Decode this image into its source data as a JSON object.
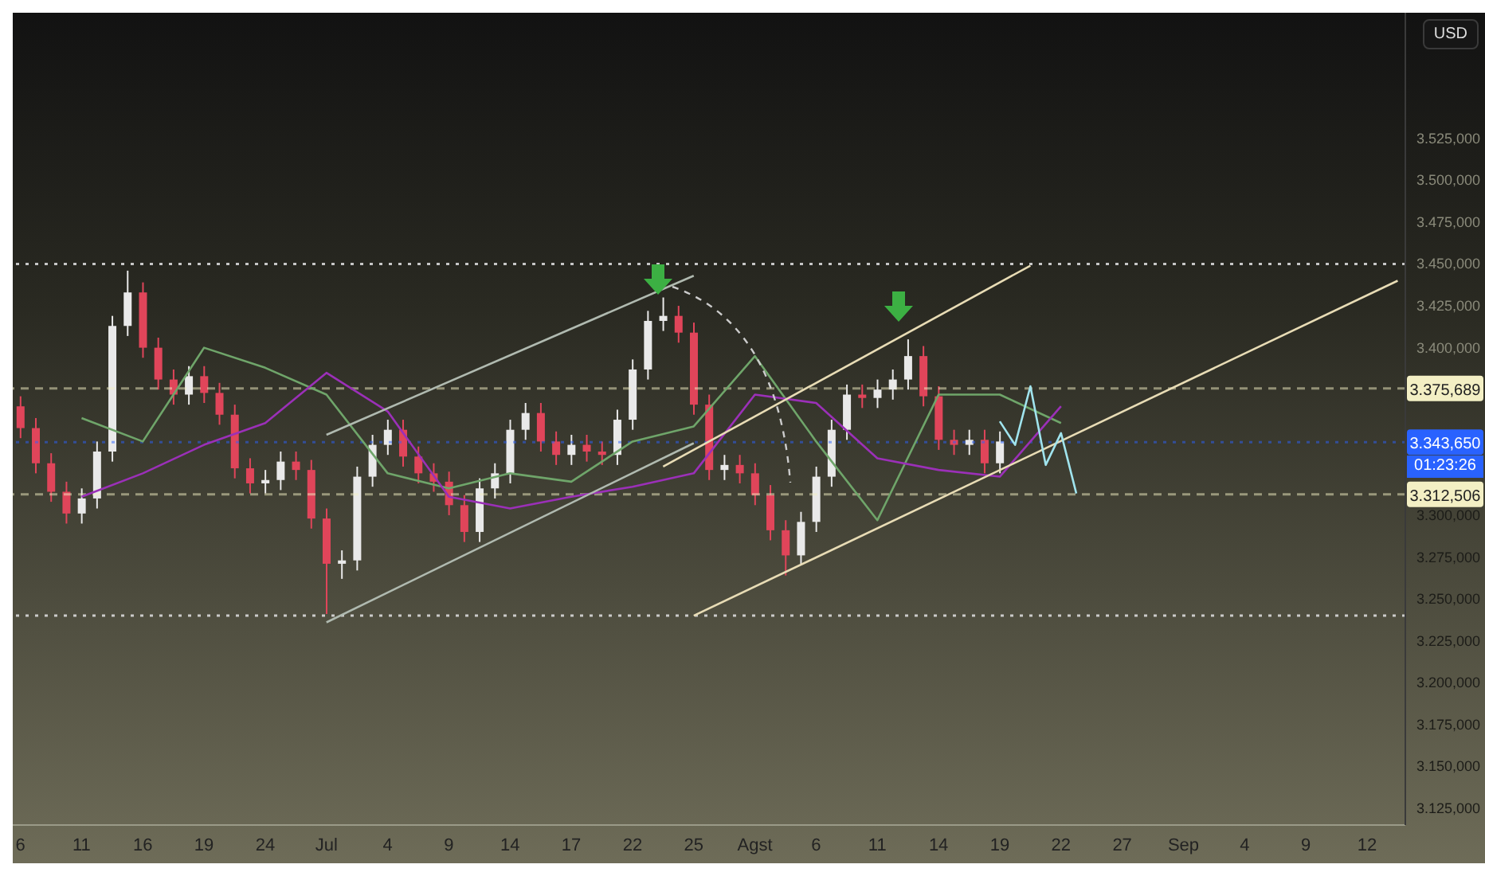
{
  "chart_data": {
    "type": "candlestick",
    "categories": [
      "6",
      null,
      null,
      null,
      "11",
      null,
      null,
      null,
      "16",
      null,
      null,
      null,
      "19",
      null,
      null,
      null,
      "24",
      null,
      null,
      null,
      "Jul",
      null,
      null,
      null,
      "4",
      null,
      null,
      null,
      "9",
      null,
      null,
      null,
      "14",
      null,
      null,
      null,
      "17",
      null,
      null,
      null,
      "22",
      null,
      null,
      null,
      "25",
      null,
      null,
      null,
      "Agst",
      null,
      null,
      null,
      "6",
      null,
      null,
      null,
      "11",
      null,
      null,
      null,
      "14",
      null,
      null,
      null,
      "19",
      null,
      null,
      null,
      "22",
      null,
      null,
      null,
      "27",
      null,
      null,
      null,
      "Sep",
      null,
      null,
      null,
      "4",
      null,
      null,
      null,
      "9",
      null,
      null,
      null,
      "12",
      null,
      null
    ],
    "ohlc": [
      [
        3365,
        3371,
        3346,
        3352
      ],
      [
        3352,
        3358,
        3325,
        3331
      ],
      [
        3331,
        3337,
        3308,
        3314
      ],
      [
        3314,
        3320,
        3295,
        3301
      ],
      [
        3301,
        3316,
        3295,
        3310
      ],
      [
        3310,
        3344,
        3304,
        3338
      ],
      [
        3338,
        3419,
        3332,
        3413
      ],
      [
        3413,
        3446,
        3407,
        3433
      ],
      [
        3433,
        3439,
        3394,
        3400
      ],
      [
        3400,
        3406,
        3375,
        3381
      ],
      [
        3381,
        3387,
        3366,
        3372
      ],
      [
        3372,
        3389,
        3366,
        3383
      ],
      [
        3383,
        3389,
        3367,
        3373
      ],
      [
        3373,
        3379,
        3354,
        3360
      ],
      [
        3360,
        3366,
        3322,
        3328
      ],
      [
        3328,
        3334,
        3313,
        3319
      ],
      [
        3319,
        3327,
        3313,
        3321
      ],
      [
        3321,
        3338,
        3315,
        3332
      ],
      [
        3332,
        3338,
        3321,
        3327
      ],
      [
        3327,
        3333,
        3292,
        3298
      ],
      [
        3298,
        3304,
        3241,
        3271
      ],
      [
        3271,
        3279,
        3262,
        3273
      ],
      [
        3273,
        3329,
        3267,
        3323
      ],
      [
        3323,
        3348,
        3317,
        3342
      ],
      [
        3342,
        3357,
        3336,
        3351
      ],
      [
        3351,
        3357,
        3329,
        3335
      ],
      [
        3335,
        3341,
        3319,
        3325
      ],
      [
        3325,
        3331,
        3314,
        3320
      ],
      [
        3320,
        3326,
        3300,
        3306
      ],
      [
        3306,
        3312,
        3284,
        3290
      ],
      [
        3290,
        3322,
        3284,
        3316
      ],
      [
        3316,
        3331,
        3310,
        3325
      ],
      [
        3325,
        3357,
        3319,
        3351
      ],
      [
        3351,
        3367,
        3345,
        3361
      ],
      [
        3361,
        3367,
        3338,
        3344
      ],
      [
        3344,
        3350,
        3330,
        3336
      ],
      [
        3336,
        3348,
        3330,
        3342
      ],
      [
        3342,
        3348,
        3332,
        3338
      ],
      [
        3338,
        3344,
        3330,
        3336
      ],
      [
        3336,
        3363,
        3330,
        3357
      ],
      [
        3357,
        3393,
        3351,
        3387
      ],
      [
        3387,
        3422,
        3381,
        3416
      ],
      [
        3416,
        3430,
        3410,
        3419
      ],
      [
        3419,
        3425,
        3403,
        3409
      ],
      [
        3409,
        3415,
        3360,
        3366
      ],
      [
        3366,
        3372,
        3321,
        3327
      ],
      [
        3327,
        3336,
        3321,
        3330
      ],
      [
        3330,
        3336,
        3319,
        3325
      ],
      [
        3325,
        3331,
        3306,
        3312
      ],
      [
        3312,
        3318,
        3285,
        3291
      ],
      [
        3291,
        3297,
        3264,
        3276
      ],
      [
        3276,
        3302,
        3270,
        3296
      ],
      [
        3296,
        3329,
        3290,
        3323
      ],
      [
        3323,
        3357,
        3317,
        3351
      ],
      [
        3351,
        3378,
        3345,
        3372
      ],
      [
        3372,
        3378,
        3364,
        3370
      ],
      [
        3370,
        3381,
        3364,
        3375
      ],
      [
        3375,
        3387,
        3369,
        3381
      ],
      [
        3381,
        3405,
        3375,
        3395
      ],
      [
        3395,
        3401,
        3365,
        3371
      ],
      [
        3371,
        3377,
        3339,
        3345
      ],
      [
        3345,
        3351,
        3336,
        3342
      ],
      [
        3342,
        3351,
        3336,
        3345
      ],
      [
        3345,
        3351,
        3325,
        3331
      ],
      [
        3331,
        3350,
        3325,
        3344
      ],
      null,
      null,
      null,
      null,
      null,
      null,
      null,
      null,
      null,
      null,
      null,
      null,
      null,
      null,
      null,
      null,
      null,
      null,
      null,
      null,
      null,
      null,
      null,
      null,
      null,
      null
    ],
    "colors": [
      "#e0455a",
      "#e0455a",
      "#e0455a",
      "#e0455a",
      "#e9e9e9",
      "#e9e9e9",
      "#e9e9e9",
      "#e9e9e9",
      "#e0455a",
      "#e0455a",
      "#e0455a",
      "#e9e9e9",
      "#e0455a",
      "#e0455a",
      "#e0455a",
      "#e0455a",
      "#e9e9e9",
      "#e9e9e9",
      "#e0455a",
      "#e0455a",
      "#e0455a",
      "#e9e9e9",
      "#e9e9e9",
      "#e9e9e9",
      "#e9e9e9",
      "#e0455a",
      "#e0455a",
      "#e0455a",
      "#e0455a",
      "#e0455a",
      "#e9e9e9",
      "#e9e9e9",
      "#e9e9e9",
      "#e9e9e9",
      "#e0455a",
      "#e0455a",
      "#e9e9e9",
      "#e0455a",
      "#e0455a",
      "#e9e9e9",
      "#e9e9e9",
      "#e9e9e9",
      "#e9e9e9",
      "#e0455a",
      "#e0455a",
      "#e0455a",
      "#e9e9e9",
      "#e0455a",
      "#e0455a",
      "#e0455a",
      "#e0455a",
      "#e9e9e9",
      "#e9e9e9",
      "#e9e9e9",
      "#e9e9e9",
      "#e0455a",
      "#e9e9e9",
      "#e9e9e9",
      "#e9e9e9",
      "#e0455a",
      "#e0455a",
      "#e0455a",
      "#e9e9e9",
      "#e0455a",
      "#e9e9e9",
      null,
      null,
      null,
      null,
      null,
      null,
      null,
      null,
      null,
      null,
      null,
      null,
      null,
      null,
      null,
      null,
      null,
      null,
      null,
      null,
      null,
      null,
      null,
      null,
      null,
      null
    ],
    "series": [
      {
        "type": "line",
        "color": "#6fa56a",
        "values": [
          null,
          null,
          null,
          null,
          3358,
          null,
          null,
          null,
          3344,
          null,
          null,
          null,
          3400,
          null,
          null,
          null,
          3388,
          null,
          null,
          null,
          3372,
          null,
          null,
          null,
          3325,
          null,
          null,
          null,
          3316,
          null,
          null,
          null,
          3325,
          null,
          null,
          null,
          3320,
          null,
          null,
          null,
          3344,
          null,
          null,
          null,
          3353,
          null,
          null,
          null,
          3395,
          null,
          null,
          null,
          3344,
          null,
          null,
          null,
          3297,
          null,
          null,
          null,
          3372,
          null,
          null,
          null,
          3372,
          null,
          null,
          null,
          3355,
          null,
          null,
          null,
          null,
          null,
          null,
          null,
          null,
          null,
          null,
          null,
          null,
          null,
          null,
          null,
          null,
          null,
          null,
          null,
          null,
          null,
          null
        ]
      },
      {
        "type": "line",
        "color": "#9b30b8",
        "values": [
          null,
          null,
          null,
          null,
          3311,
          null,
          null,
          null,
          3325,
          null,
          null,
          null,
          3342,
          null,
          null,
          null,
          3355,
          null,
          null,
          null,
          3385,
          null,
          null,
          null,
          3362,
          null,
          null,
          null,
          3311,
          null,
          null,
          null,
          3304,
          null,
          null,
          null,
          3311,
          null,
          null,
          null,
          3317,
          null,
          null,
          null,
          3325,
          null,
          null,
          null,
          3372,
          null,
          null,
          null,
          3367,
          null,
          null,
          null,
          3334,
          null,
          null,
          null,
          3327,
          null,
          null,
          null,
          3323,
          null,
          null,
          null,
          3365,
          null,
          null,
          null,
          null,
          null,
          null,
          null,
          null,
          null,
          null,
          null,
          null,
          null,
          null,
          null,
          null,
          null,
          null,
          null,
          null,
          null,
          null
        ]
      },
      {
        "type": "line",
        "color": "#b0bab0",
        "values": [
          null,
          null,
          null,
          null,
          null,
          null,
          null,
          null,
          null,
          null,
          null,
          null,
          null,
          null,
          null,
          null,
          null,
          null,
          null,
          null,
          3236,
          null,
          null,
          null,
          null,
          null,
          null,
          null,
          null,
          null,
          null,
          null,
          null,
          null,
          null,
          null,
          null,
          null,
          null,
          null,
          null,
          null,
          null,
          null,
          3343,
          null,
          null,
          null,
          null,
          null,
          null,
          null,
          null,
          null,
          null,
          null,
          null,
          null,
          null,
          null,
          null,
          null,
          null,
          null,
          null,
          null,
          null,
          null,
          null,
          null,
          null,
          null,
          null,
          null,
          null,
          null,
          null,
          null,
          null,
          null,
          null,
          null,
          null,
          null,
          null,
          null,
          null,
          null,
          null,
          null,
          null
        ]
      },
      {
        "type": "line",
        "color": "#b0bab0",
        "values": [
          null,
          null,
          null,
          null,
          null,
          null,
          null,
          null,
          null,
          null,
          null,
          null,
          null,
          null,
          null,
          null,
          null,
          null,
          null,
          null,
          3348,
          null,
          null,
          null,
          null,
          null,
          null,
          null,
          null,
          null,
          null,
          null,
          null,
          null,
          null,
          null,
          null,
          null,
          null,
          null,
          null,
          null,
          null,
          null,
          3443,
          null,
          null,
          null,
          null,
          null,
          null,
          null,
          null,
          null,
          null,
          null,
          null,
          null,
          null,
          null,
          null,
          null,
          null,
          null,
          null,
          null,
          null,
          null,
          null,
          null,
          null,
          null,
          null,
          null,
          null,
          null,
          null,
          null,
          null,
          null,
          null,
          null,
          null,
          null,
          null,
          null,
          null,
          null,
          null,
          null,
          null
        ]
      },
      {
        "type": "line",
        "color": "#e8dcb5",
        "values": [
          null,
          null,
          null,
          null,
          null,
          null,
          null,
          null,
          null,
          null,
          null,
          null,
          null,
          null,
          null,
          null,
          null,
          null,
          null,
          null,
          null,
          null,
          null,
          null,
          null,
          null,
          null,
          null,
          null,
          null,
          null,
          null,
          null,
          null,
          null,
          null,
          null,
          null,
          null,
          null,
          null,
          null,
          3329,
          null,
          null,
          null,
          null,
          null,
          null,
          null,
          null,
          null,
          null,
          null,
          null,
          null,
          null,
          null,
          null,
          null,
          null,
          null,
          null,
          null,
          null,
          null,
          3449,
          null,
          null,
          null,
          null,
          null,
          null,
          null,
          null,
          null,
          null,
          null,
          null,
          null,
          null,
          null,
          null,
          null,
          null,
          null,
          null,
          null,
          null,
          null,
          null
        ]
      },
      {
        "type": "line",
        "color": "#e8dcb5",
        "values": [
          null,
          null,
          null,
          null,
          null,
          null,
          null,
          null,
          null,
          null,
          null,
          null,
          null,
          null,
          null,
          null,
          null,
          null,
          null,
          null,
          null,
          null,
          null,
          null,
          null,
          null,
          null,
          null,
          null,
          null,
          null,
          null,
          null,
          null,
          null,
          null,
          null,
          null,
          null,
          null,
          null,
          null,
          null,
          null,
          3240,
          null,
          null,
          null,
          null,
          null,
          null,
          null,
          null,
          null,
          null,
          null,
          null,
          null,
          null,
          null,
          null,
          null,
          null,
          null,
          null,
          null,
          null,
          null,
          null,
          null,
          null,
          null,
          null,
          null,
          null,
          null,
          null,
          null,
          null,
          null,
          null,
          null,
          null,
          null,
          null,
          null,
          null,
          null,
          null,
          null,
          3440
        ]
      },
      {
        "type": "line",
        "color": "#a0e4ee",
        "values": [
          null,
          null,
          null,
          null,
          null,
          null,
          null,
          null,
          null,
          null,
          null,
          null,
          null,
          null,
          null,
          null,
          null,
          null,
          null,
          null,
          null,
          null,
          null,
          null,
          null,
          null,
          null,
          null,
          null,
          null,
          null,
          null,
          null,
          null,
          null,
          null,
          null,
          null,
          null,
          null,
          null,
          null,
          null,
          null,
          null,
          null,
          null,
          null,
          null,
          null,
          null,
          null,
          null,
          null,
          null,
          null,
          null,
          null,
          null,
          null,
          null,
          null,
          null,
          null,
          3356,
          3342,
          3377,
          3330,
          3349,
          3313,
          null,
          null,
          null,
          null,
          null,
          null,
          null,
          null,
          null,
          null,
          null,
          null,
          null,
          null,
          null,
          null,
          null,
          null,
          null,
          null,
          null
        ]
      }
    ],
    "ylim": [
      3115,
      3600
    ],
    "yticks": [
      {
        "value": 3125,
        "label": "3.125,000"
      },
      {
        "value": 3150,
        "label": "3.150,000"
      },
      {
        "value": 3175,
        "label": "3.175,000"
      },
      {
        "value": 3200,
        "label": "3.200,000"
      },
      {
        "value": 3225,
        "label": "3.225,000"
      },
      {
        "value": 3250,
        "label": "3.250,000"
      },
      {
        "value": 3275,
        "label": "3.275,000"
      },
      {
        "value": 3300,
        "label": "3.300,000"
      },
      {
        "value": 3400,
        "label": "3.400,000"
      },
      {
        "value": 3425,
        "label": "3.425,000"
      },
      {
        "value": 3450,
        "label": "3.450,000"
      },
      {
        "value": 3475,
        "label": "3.475,000"
      },
      {
        "value": 3500,
        "label": "3.500,000"
      },
      {
        "value": 3525,
        "label": "3.525,000"
      }
    ],
    "ref_lines": [
      {
        "axis": "y",
        "value": 3450,
        "color": "#d8d8d8",
        "line_style": "dotted"
      },
      {
        "axis": "y",
        "value": 3240,
        "color": "#d8d8d8",
        "line_style": "dotted"
      },
      {
        "axis": "y",
        "value": 3375.689,
        "label": "3.375,689",
        "color": "#f3efc4",
        "line_style": "dashed"
      },
      {
        "axis": "y",
        "value": 3312.506,
        "label": "3.312,506",
        "color": "#f3efc4",
        "line_style": "dashed"
      },
      {
        "axis": "y",
        "value": 3343.65,
        "label": "3.343,650",
        "color": "#2962ff",
        "line_style": "dotted"
      }
    ],
    "annotations": [
      "USD",
      "01:23:26"
    ]
  }
}
